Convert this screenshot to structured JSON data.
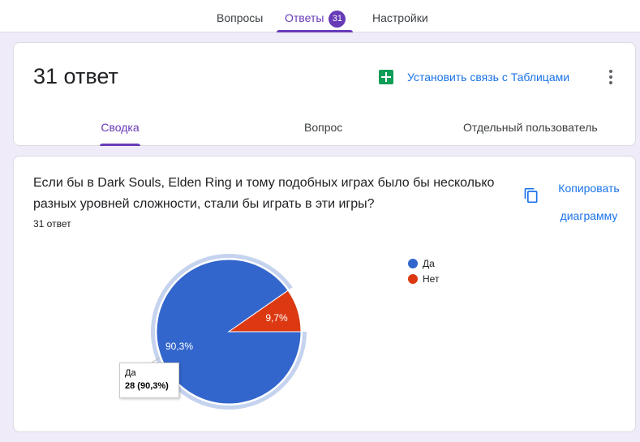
{
  "top_tabs": {
    "questions": "Вопросы",
    "responses": "Ответы",
    "responses_badge": "31",
    "settings": "Настройки"
  },
  "summary_card": {
    "response_count": "31 ответ",
    "sheets_link": "Установить связь с Таблицами",
    "sub_tabs": [
      "Сводка",
      "Вопрос",
      "Отдельный пользователь"
    ],
    "active_sub_tab": "Сводка"
  },
  "question_card": {
    "question_text": "Если бы в Dark Souls, Elden Ring и тому подобных играх было бы несколько разных уровней сложности, стали бы играть в эти игры?",
    "response_count": "31 ответ",
    "copy_line1": "Копировать",
    "copy_line2": "диаграмму",
    "tooltip_label": "Да",
    "tooltip_value": "28 (90,3%)"
  },
  "icons": [
    "sheets-icon",
    "more-vert-icon",
    "copy-icon"
  ],
  "colors": {
    "accent": "#673ab7",
    "link": "#1a73e8",
    "background": "#f0ebf8",
    "yes": "#3366cc",
    "no": "#dc3912",
    "highlight_ring": "#c5d3ef",
    "sheets": "#0f9d58"
  },
  "chart_data": {
    "type": "pie",
    "title": "",
    "categories": [
      "Да",
      "Нет"
    ],
    "values": [
      28,
      3
    ],
    "percent_labels": [
      "90,3%",
      "9,7%"
    ],
    "colors": [
      "#3366cc",
      "#dc3912"
    ],
    "legend_position": "right",
    "highlighted": "Да"
  }
}
